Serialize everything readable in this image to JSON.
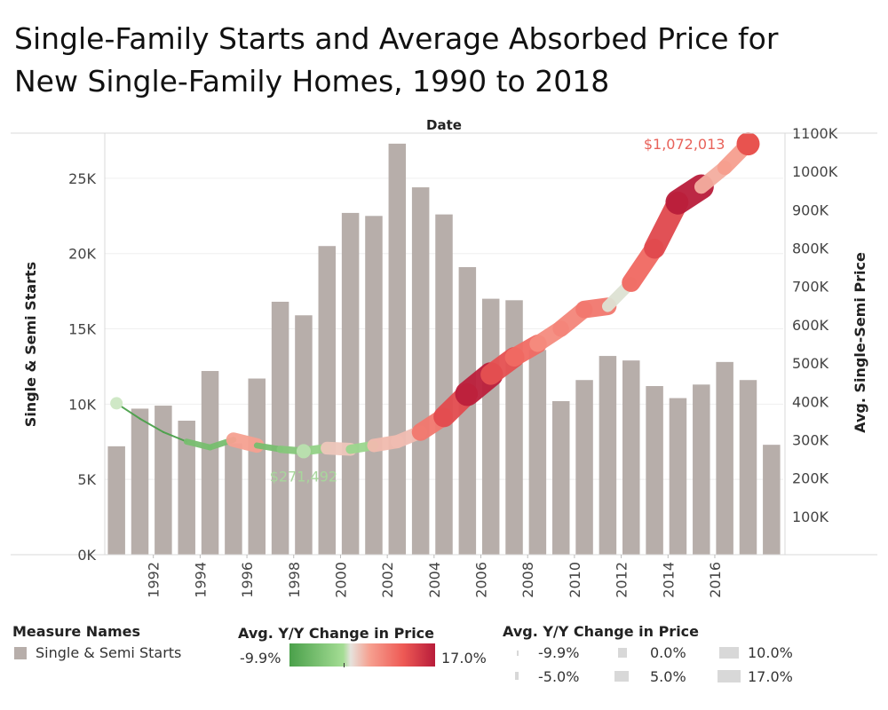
{
  "title_line1": "Single-Family Starts and Average Absorbed Price for",
  "title_line2": "New Single-Family Homes, 1990 to 2018",
  "chart_data": {
    "type": "bar+line",
    "top_axis_label": "Date",
    "ylabel_left": "Single & Semi Starts",
    "ylabel_right": "Avg. Single-Semi Price",
    "ylim_left": [
      0,
      28000
    ],
    "ylim_right": [
      0,
      1100000
    ],
    "left_ticks": [
      "0K",
      "5K",
      "10K",
      "15K",
      "20K",
      "25K"
    ],
    "right_ticks": [
      "100K",
      "200K",
      "300K",
      "400K",
      "500K",
      "600K",
      "700K",
      "800K",
      "900K",
      "1000K",
      "1100K"
    ],
    "x_tick_labels": [
      "1992",
      "1994",
      "1996",
      "1998",
      "2000",
      "2002",
      "2004",
      "2006",
      "2008",
      "2010",
      "2012",
      "2014",
      "2016"
    ],
    "grid": "horizontal",
    "years": [
      1990,
      1991,
      1992,
      1993,
      1994,
      1995,
      1996,
      1997,
      1998,
      1999,
      2000,
      2001,
      2002,
      2003,
      2004,
      2005,
      2006,
      2007,
      2008,
      2009,
      2010,
      2011,
      2012,
      2013,
      2014,
      2015,
      2016,
      2017,
      2018
    ],
    "series": [
      {
        "name": "Single & Semi Starts",
        "type": "bar",
        "color": "#b7aeaa",
        "values": [
          7200,
          9700,
          9900,
          8900,
          12200,
          7400,
          11700,
          16800,
          15900,
          20500,
          22700,
          22500,
          27300,
          24400,
          22600,
          19100,
          17000,
          16900,
          13600,
          10200,
          11600,
          13200,
          12900,
          11200,
          10400,
          11300,
          12800,
          11600,
          7300
        ]
      },
      {
        "name": "Avg. Single-Semi Price",
        "type": "line",
        "values": [
          395000,
          355000,
          320000,
          295000,
          280000,
          300000,
          285000,
          275000,
          270000,
          278000,
          275000,
          285000,
          295000,
          320000,
          360000,
          420000,
          470000,
          515000,
          550000,
          590000,
          640000,
          648000,
          710000,
          800000,
          920000,
          960000,
          1010000,
          1072013
        ],
        "yoy_change_pct": [
          -9.9,
          -9.9,
          -9.9,
          -5.0,
          -5.0,
          5.0,
          -5.0,
          -3.5,
          -1.8,
          3.0,
          -1.1,
          3.6,
          3.5,
          8.5,
          12.5,
          16.7,
          12.0,
          9.6,
          6.8,
          7.3,
          8.5,
          1.3,
          9.8,
          12.7,
          17.0,
          4.3,
          5.2,
          6.1
        ]
      }
    ],
    "annotations": [
      {
        "label": "$271,492",
        "year": 1998,
        "color": "#a8d69c"
      },
      {
        "label": "$1,072,013",
        "year": 2017,
        "color": "#e8625a"
      }
    ],
    "legend": {
      "measure_names_title": "Measure Names",
      "measure_names_item": "Single & Semi Starts",
      "color_title": "Avg. Y/Y Change in Price",
      "color_min": "-9.9%",
      "color_max": "17.0%",
      "size_title": "Avg. Y/Y Change in Price",
      "size_items": [
        "-9.9%",
        "-5.0%",
        "0.0%",
        "5.0%",
        "10.0%",
        "17.0%"
      ]
    }
  }
}
